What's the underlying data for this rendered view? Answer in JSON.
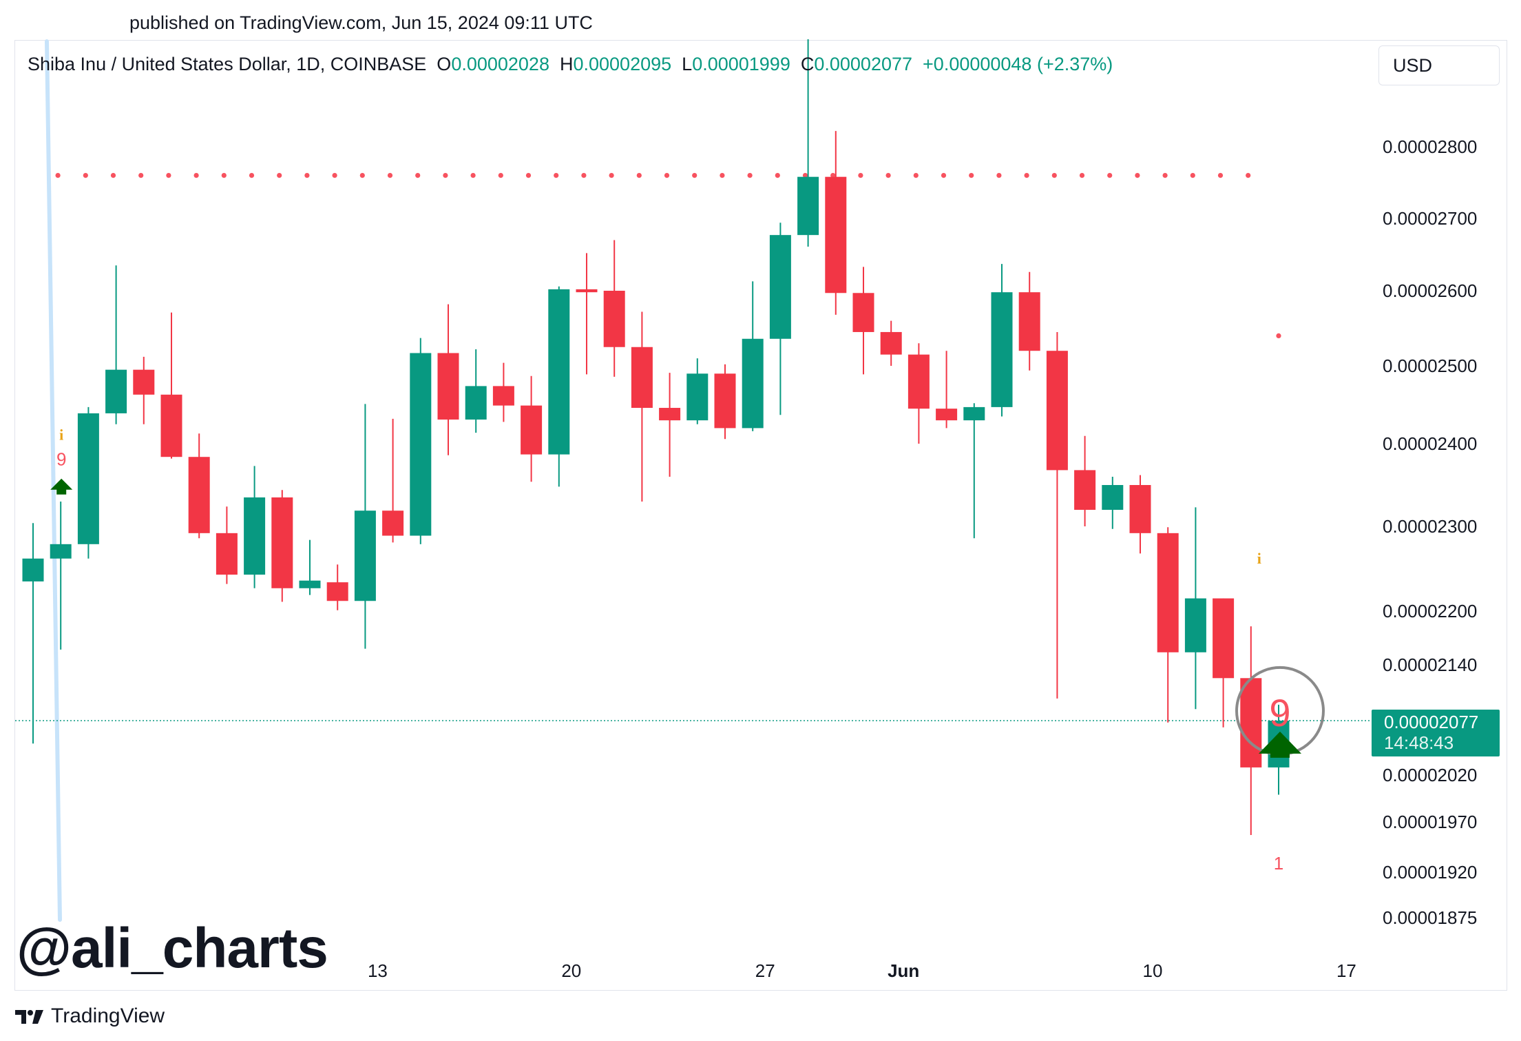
{
  "header": {
    "published": "published on TradingView.com, Jun 15, 2024 09:11 UTC"
  },
  "legend": {
    "symbol": "Shiba Inu / United States Dollar, 1D, COINBASE",
    "o_label": "O",
    "o_value": "0.00002028",
    "h_label": "H",
    "h_value": "0.00002095",
    "l_label": "L",
    "l_value": "0.00001999",
    "c_label": "C",
    "c_value": "0.00002077",
    "change": "+0.00000048 (+2.37%)"
  },
  "currency": "USD",
  "price_tag": {
    "price": "0.00002077",
    "countdown": "14:48:43"
  },
  "watermark": "@ali_charts",
  "footer": {
    "brand": "TradingView"
  },
  "colors": {
    "up": "#089981",
    "down": "#f23645",
    "resistance": "#f7525f",
    "setup_arrow": "#006400"
  },
  "chart_data": {
    "type": "candlestick",
    "symbol": "SHIB/USD",
    "interval": "1D",
    "y_axis_ticks": [
      2.8e-05,
      2.7e-05,
      2.6e-05,
      2.5e-05,
      2.4e-05,
      2.3e-05,
      2.2e-05,
      2.14e-05,
      2.077e-05,
      2.02e-05,
      1.97e-05,
      1.92e-05,
      1.875e-05
    ],
    "y_tick_labels": [
      "0.00002800",
      "0.00002700",
      "0.00002600",
      "0.00002500",
      "0.00002400",
      "0.00002300",
      "0.00002200",
      "0.00002140",
      "0.00002020",
      "0.00001970",
      "0.00001920",
      "0.00001875"
    ],
    "x_tick_labels": [
      {
        "label": "13",
        "index": 12
      },
      {
        "label": "20",
        "index": 19
      },
      {
        "label": "27",
        "index": 26
      },
      {
        "label": "Jun",
        "index": 31
      },
      {
        "label": "10",
        "index": 40
      },
      {
        "label": "17",
        "index": 47
      }
    ],
    "candles": [
      {
        "o": 2.235e-05,
        "h": 2.304e-05,
        "l": 2.053e-05,
        "c": 2.262e-05
      },
      {
        "o": 2.262e-05,
        "h": 2.33e-05,
        "l": 2.157e-05,
        "c": 2.279e-05
      },
      {
        "o": 2.279e-05,
        "h": 2.447e-05,
        "l": 2.262e-05,
        "c": 2.439e-05
      },
      {
        "o": 2.439e-05,
        "h": 2.635e-05,
        "l": 2.425e-05,
        "c": 2.495e-05
      },
      {
        "o": 2.495e-05,
        "h": 2.512e-05,
        "l": 2.425e-05,
        "c": 2.463e-05
      },
      {
        "o": 2.463e-05,
        "h": 2.571e-05,
        "l": 2.382e-05,
        "c": 2.384e-05
      },
      {
        "o": 2.384e-05,
        "h": 2.413e-05,
        "l": 2.286e-05,
        "c": 2.292e-05
      },
      {
        "o": 2.292e-05,
        "h": 2.324e-05,
        "l": 2.232e-05,
        "c": 2.243e-05
      },
      {
        "o": 2.243e-05,
        "h": 2.373e-05,
        "l": 2.227e-05,
        "c": 2.335e-05
      },
      {
        "o": 2.335e-05,
        "h": 2.344e-05,
        "l": 2.211e-05,
        "c": 2.227e-05
      },
      {
        "o": 2.227e-05,
        "h": 2.284e-05,
        "l": 2.219e-05,
        "c": 2.236e-05
      },
      {
        "o": 2.234e-05,
        "h": 2.255e-05,
        "l": 2.201e-05,
        "c": 2.212e-05
      },
      {
        "o": 2.212e-05,
        "h": 2.451e-05,
        "l": 2.158e-05,
        "c": 2.319e-05
      },
      {
        "o": 2.319e-05,
        "h": 2.432e-05,
        "l": 2.281e-05,
        "c": 2.289e-05
      },
      {
        "o": 2.289e-05,
        "h": 2.537e-05,
        "l": 2.279e-05,
        "c": 2.517e-05
      },
      {
        "o": 2.517e-05,
        "h": 2.582e-05,
        "l": 2.386e-05,
        "c": 2.431e-05
      },
      {
        "o": 2.431e-05,
        "h": 2.522e-05,
        "l": 2.414e-05,
        "c": 2.474e-05
      },
      {
        "o": 2.474e-05,
        "h": 2.504e-05,
        "l": 2.428e-05,
        "c": 2.449e-05
      },
      {
        "o": 2.449e-05,
        "h": 2.487e-05,
        "l": 2.354e-05,
        "c": 2.387e-05
      },
      {
        "o": 2.387e-05,
        "h": 2.606e-05,
        "l": 2.348e-05,
        "c": 2.602e-05
      },
      {
        "o": 2.602e-05,
        "h": 2.652e-05,
        "l": 2.489e-05,
        "c": 2.598e-05
      },
      {
        "o": 2.6e-05,
        "h": 2.67e-05,
        "l": 2.486e-05,
        "c": 2.525e-05
      },
      {
        "o": 2.525e-05,
        "h": 2.572e-05,
        "l": 2.33e-05,
        "c": 2.446e-05
      },
      {
        "o": 2.446e-05,
        "h": 2.491e-05,
        "l": 2.36e-05,
        "c": 2.43e-05
      },
      {
        "o": 2.43e-05,
        "h": 2.51e-05,
        "l": 2.425e-05,
        "c": 2.49e-05
      },
      {
        "o": 2.49e-05,
        "h": 2.502e-05,
        "l": 2.406e-05,
        "c": 2.42e-05
      },
      {
        "o": 2.42e-05,
        "h": 2.613e-05,
        "l": 2.416e-05,
        "c": 2.536e-05
      },
      {
        "o": 2.536e-05,
        "h": 2.694e-05,
        "l": 2.437e-05,
        "c": 2.677e-05
      },
      {
        "o": 2.677e-05,
        "h": 2.95e-05,
        "l": 2.661e-05,
        "c": 2.758e-05
      },
      {
        "o": 2.758e-05,
        "h": 2.822e-05,
        "l": 2.568e-05,
        "c": 2.597e-05
      },
      {
        "o": 2.597e-05,
        "h": 2.633e-05,
        "l": 2.489e-05,
        "c": 2.545e-05
      },
      {
        "o": 2.545e-05,
        "h": 2.56e-05,
        "l": 2.5e-05,
        "c": 2.515e-05
      },
      {
        "o": 2.515e-05,
        "h": 2.53e-05,
        "l": 2.4e-05,
        "c": 2.445e-05
      },
      {
        "o": 2.445e-05,
        "h": 2.52e-05,
        "l": 2.42e-05,
        "c": 2.43e-05
      },
      {
        "o": 2.43e-05,
        "h": 2.452e-05,
        "l": 2.286e-05,
        "c": 2.447e-05
      },
      {
        "o": 2.447e-05,
        "h": 2.637e-05,
        "l": 2.435e-05,
        "c": 2.598e-05
      },
      {
        "o": 2.598e-05,
        "h": 2.626e-05,
        "l": 2.494e-05,
        "c": 2.52e-05
      },
      {
        "o": 2.52e-05,
        "h": 2.545e-05,
        "l": 2.102e-05,
        "c": 2.368e-05
      },
      {
        "o": 2.368e-05,
        "h": 2.41e-05,
        "l": 2.3e-05,
        "c": 2.32e-05
      },
      {
        "o": 2.32e-05,
        "h": 2.36e-05,
        "l": 2.297e-05,
        "c": 2.35e-05
      },
      {
        "o": 2.35e-05,
        "h": 2.362e-05,
        "l": 2.268e-05,
        "c": 2.292e-05
      },
      {
        "o": 2.292e-05,
        "h": 2.299e-05,
        "l": 2.075e-05,
        "c": 2.154e-05
      },
      {
        "o": 2.154e-05,
        "h": 2.323e-05,
        "l": 2.09e-05,
        "c": 2.215e-05
      },
      {
        "o": 2.215e-05,
        "h": 2.215e-05,
        "l": 2.07e-05,
        "c": 2.125e-05
      },
      {
        "o": 2.125e-05,
        "h": 2.183e-05,
        "l": 1.957e-05,
        "c": 2.028e-05
      },
      {
        "o": 2.028e-05,
        "h": 2.095e-05,
        "l": 1.999e-05,
        "c": 2.077e-05
      }
    ],
    "current_price": 2.077e-05,
    "resistance_level": 2.76e-05,
    "resistance_from_index": 1,
    "resistance_to_index": 44,
    "extra_dot": {
      "index": 45,
      "price": 2.54e-05
    },
    "setup_markers": [
      {
        "index": 1,
        "count_label": "9",
        "info_label": "i",
        "arrow": "up"
      },
      {
        "index": 45,
        "count_label": "9",
        "info_label": "i",
        "arrow": "up",
        "circled": true
      }
    ],
    "count_labels": [
      {
        "index": 45,
        "label": "1"
      }
    ]
  }
}
